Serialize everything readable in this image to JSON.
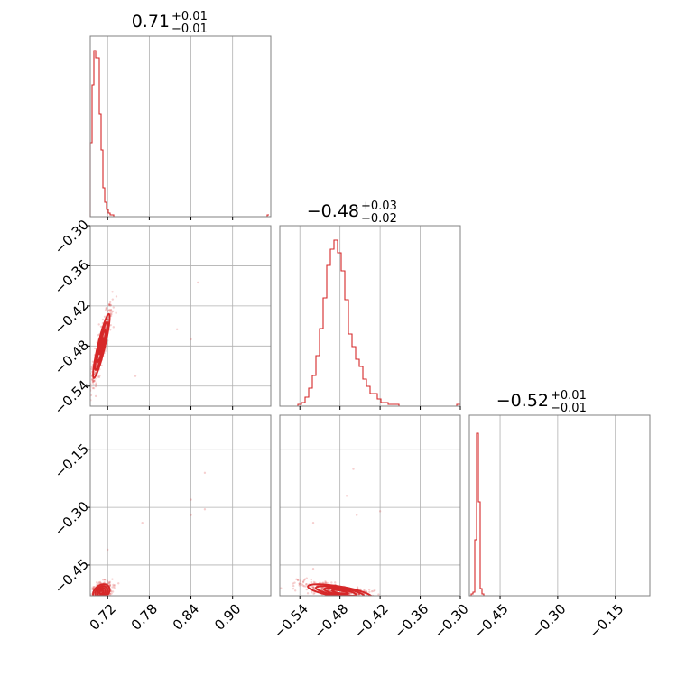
{
  "chart_data": {
    "type": "corner",
    "color": "#d62728",
    "parameters": [
      {
        "range": [
          0.695,
          0.955
        ],
        "ticks": [
          0.72,
          0.78,
          0.84,
          0.9
        ],
        "tick_labels": [
          "0.72",
          "0.78",
          "0.84",
          "0.90"
        ],
        "title_main": "0.71",
        "title_plus": "+0.01",
        "title_minus": "−0.01"
      },
      {
        "range": [
          -0.57,
          -0.3
        ],
        "ticks": [
          -0.54,
          -0.48,
          -0.42,
          -0.36,
          -0.3
        ],
        "tick_labels": [
          "−0.54",
          "−0.48",
          "−0.42",
          "−0.36",
          "−0.30"
        ],
        "title_main": "−0.48",
        "title_plus": "+0.03",
        "title_minus": "−0.02"
      },
      {
        "range": [
          -0.53,
          -0.06
        ],
        "ticks": [
          -0.45,
          -0.3,
          -0.15
        ],
        "tick_labels": [
          "−0.45",
          "−0.30",
          "−0.15"
        ],
        "y_ticks": [
          -0.15,
          -0.3,
          -0.45
        ],
        "y_tick_labels": [
          "−0.15",
          "−0.30",
          "−0.45"
        ],
        "title_main": "−0.52",
        "title_plus": "+0.01",
        "title_minus": "−0.01"
      }
    ],
    "histograms": [
      {
        "param": 0,
        "edges_start": 0.695,
        "bin_width": 0.0026,
        "counts": [
          0.41,
          0.73,
          0.92,
          0.88,
          0.88,
          0.57,
          0.37,
          0.16,
          0.08,
          0.04,
          0.02,
          0.01,
          0.01,
          0,
          0,
          0,
          0,
          0,
          0,
          0,
          0,
          0,
          0,
          0,
          0,
          0,
          0,
          0,
          0,
          0,
          0,
          0,
          0,
          0,
          0,
          0,
          0,
          0,
          0,
          0,
          0,
          0,
          0,
          0,
          0,
          0,
          0,
          0,
          0,
          0,
          0,
          0,
          0,
          0,
          0,
          0,
          0,
          0,
          0,
          0,
          0,
          0,
          0,
          0,
          0,
          0,
          0,
          0,
          0,
          0,
          0,
          0,
          0,
          0,
          0,
          0,
          0,
          0,
          0,
          0,
          0,
          0,
          0,
          0,
          0,
          0,
          0,
          0,
          0,
          0,
          0,
          0,
          0,
          0,
          0,
          0,
          0,
          0,
          0.01
        ]
      },
      {
        "param": 1,
        "edges_start": -0.57,
        "bin_width": 0.0054,
        "counts": [
          0,
          0,
          0,
          0,
          0,
          0.01,
          0.02,
          0.05,
          0.1,
          0.17,
          0.28,
          0.43,
          0.6,
          0.78,
          0.87,
          0.92,
          0.85,
          0.75,
          0.59,
          0.4,
          0.33,
          0.26,
          0.22,
          0.15,
          0.11,
          0.07,
          0.07,
          0.04,
          0.02,
          0.02,
          0.01,
          0.01,
          0.01,
          0,
          0,
          0,
          0,
          0,
          0,
          0,
          0,
          0,
          0,
          0,
          0,
          0,
          0,
          0,
          0,
          0.01
        ]
      },
      {
        "param": 2,
        "edges_start": -0.53,
        "bin_width": 0.0047,
        "counts": [
          0,
          0.01,
          0.02,
          0.31,
          0.9,
          0.52,
          0.04,
          0.01,
          0,
          0,
          0,
          0,
          0,
          0,
          0,
          0,
          0,
          0,
          0,
          0,
          0,
          0,
          0,
          0,
          0,
          0,
          0,
          0,
          0,
          0,
          0,
          0,
          0,
          0,
          0,
          0,
          0,
          0,
          0,
          0,
          0,
          0,
          0,
          0,
          0,
          0,
          0,
          0,
          0,
          0,
          0,
          0,
          0,
          0,
          0,
          0,
          0,
          0,
          0,
          0,
          0,
          0,
          0,
          0,
          0,
          0,
          0,
          0,
          0,
          0,
          0,
          0,
          0,
          0,
          0,
          0,
          0,
          0,
          0,
          0,
          0,
          0,
          0,
          0,
          0,
          0,
          0,
          0,
          0,
          0,
          0,
          0,
          0,
          0,
          0,
          0,
          0,
          0
        ]
      }
    ],
    "pair_plots": [
      {
        "x_param": 0,
        "y_param": 1,
        "center": [
          0.711,
          -0.48
        ],
        "sigma": [
          0.006,
          0.024
        ],
        "correlation": 0.9,
        "contour_levels": [
          0.5,
          1.0,
          1.5,
          2.0
        ],
        "outliers": [
          [
            0.82,
            -0.455
          ],
          [
            0.85,
            -0.385
          ],
          [
            0.84,
            -0.47
          ],
          [
            0.76,
            -0.525
          ]
        ]
      },
      {
        "x_param": 0,
        "y_param": 2,
        "center": [
          0.711,
          -0.52
        ],
        "sigma": [
          0.006,
          0.01
        ],
        "correlation": 0.3,
        "contour_levels": [
          0.5,
          1.0,
          1.5,
          2.0
        ],
        "outliers": [
          [
            0.86,
            -0.21
          ],
          [
            0.84,
            -0.32
          ],
          [
            0.86,
            -0.305
          ],
          [
            0.84,
            -0.28
          ],
          [
            0.77,
            -0.34
          ],
          [
            0.72,
            -0.41
          ]
        ]
      },
      {
        "x_param": 1,
        "y_param": 2,
        "center": [
          -0.48,
          -0.52
        ],
        "sigma": [
          0.024,
          0.01
        ],
        "correlation": -0.7,
        "contour_levels": [
          0.5,
          1.0,
          1.5,
          2.0
        ],
        "outliers": [
          [
            -0.46,
            -0.2
          ],
          [
            -0.47,
            -0.27
          ],
          [
            -0.455,
            -0.32
          ],
          [
            -0.42,
            -0.31
          ],
          [
            -0.52,
            -0.34
          ],
          [
            -0.52,
            -0.46
          ]
        ]
      }
    ]
  }
}
